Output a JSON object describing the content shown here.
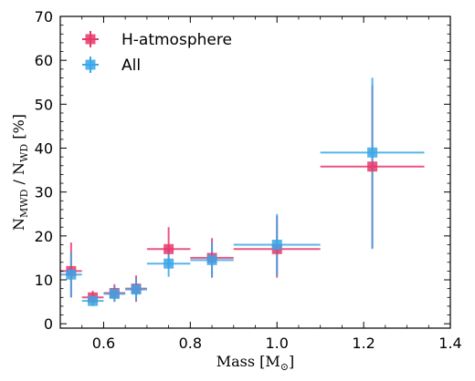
{
  "chart_data": {
    "type": "scatter",
    "title": "",
    "xlabel": {
      "main": "Mass [M",
      "sub": "⊙",
      "close": "]"
    },
    "ylabel": {
      "n1": "N",
      "s1": "MWD",
      "sep": " / N",
      "s2": "WD",
      "unit": " [%]"
    },
    "xlim": [
      0.5,
      1.4
    ],
    "ylim": [
      -1,
      70
    ],
    "xticks": [
      0.6,
      0.8,
      1.0,
      1.2,
      1.4
    ],
    "xtick_labels": [
      "0.6",
      "0.8",
      "1.0",
      "1.2",
      "1.4"
    ],
    "yticks": [
      0,
      10,
      20,
      30,
      40,
      50,
      60,
      70
    ],
    "ytick_labels": [
      "0",
      "10",
      "20",
      "30",
      "40",
      "50",
      "60",
      "70"
    ],
    "legend_position": "top-left",
    "series": [
      {
        "name": "H-atmosphere",
        "color": "#e8376b",
        "marker": "square",
        "points": [
          {
            "x": 0.525,
            "y": 12.0,
            "xerr": 0.025,
            "yerr_lo": 6.0,
            "yerr_hi": 6.5
          },
          {
            "x": 0.575,
            "y": 6.0,
            "xerr": 0.025,
            "yerr_lo": 1.5,
            "yerr_hi": 1.5
          },
          {
            "x": 0.625,
            "y": 7.0,
            "xerr": 0.025,
            "yerr_lo": 2.0,
            "yerr_hi": 2.0
          },
          {
            "x": 0.675,
            "y": 8.0,
            "xerr": 0.025,
            "yerr_lo": 3.0,
            "yerr_hi": 3.0
          },
          {
            "x": 0.75,
            "y": 17.0,
            "xerr": 0.05,
            "yerr_lo": 4.5,
            "yerr_hi": 5.0
          },
          {
            "x": 0.85,
            "y": 15.0,
            "xerr": 0.05,
            "yerr_lo": 4.5,
            "yerr_hi": 4.5
          },
          {
            "x": 1.0,
            "y": 17.0,
            "xerr": 0.1,
            "yerr_lo": 6.5,
            "yerr_hi": 7.5
          },
          {
            "x": 1.22,
            "y": 35.8,
            "xerr": 0.12,
            "yerr_lo": 18.5,
            "yerr_hi": 18.5
          }
        ]
      },
      {
        "name": "All",
        "color": "#39a7e8",
        "marker": "square",
        "points": [
          {
            "x": 0.525,
            "y": 11.2,
            "xerr": 0.025,
            "yerr_lo": 5.2,
            "yerr_hi": 5.0
          },
          {
            "x": 0.575,
            "y": 5.2,
            "xerr": 0.025,
            "yerr_lo": 1.2,
            "yerr_hi": 1.3
          },
          {
            "x": 0.625,
            "y": 6.8,
            "xerr": 0.025,
            "yerr_lo": 1.8,
            "yerr_hi": 1.7
          },
          {
            "x": 0.675,
            "y": 7.8,
            "xerr": 0.025,
            "yerr_lo": 2.5,
            "yerr_hi": 2.5
          },
          {
            "x": 0.75,
            "y": 13.7,
            "xerr": 0.05,
            "yerr_lo": 3.0,
            "yerr_hi": 3.0
          },
          {
            "x": 0.85,
            "y": 14.5,
            "xerr": 0.05,
            "yerr_lo": 4.0,
            "yerr_hi": 4.0
          },
          {
            "x": 1.0,
            "y": 18.0,
            "xerr": 0.1,
            "yerr_lo": 7.0,
            "yerr_hi": 7.0
          },
          {
            "x": 1.22,
            "y": 39.0,
            "xerr": 0.12,
            "yerr_lo": 22.0,
            "yerr_hi": 17.0
          }
        ]
      }
    ]
  }
}
